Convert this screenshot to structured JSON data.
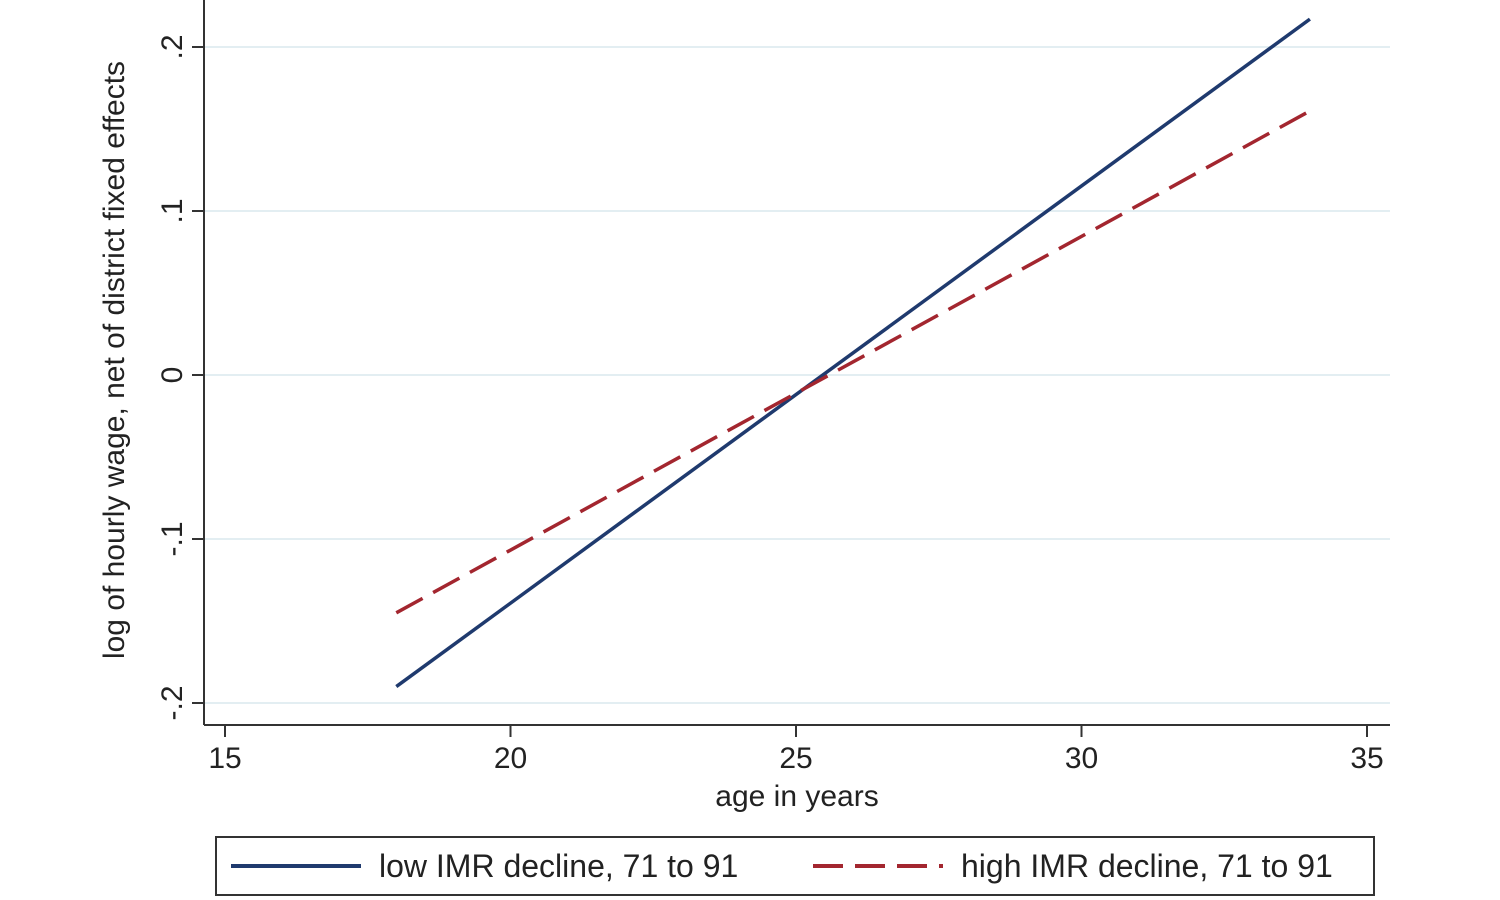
{
  "chart_data": {
    "type": "line",
    "xlabel": "age in years",
    "ylabel": "log of hourly wage, net of district fixed effects",
    "xlim": [
      15,
      35
    ],
    "ylim": [
      -0.2,
      0.2
    ],
    "x_ticks": [
      15,
      20,
      25,
      30,
      35
    ],
    "x_tick_labels": [
      "15",
      "20",
      "25",
      "30",
      "35"
    ],
    "y_ticks": [
      -0.2,
      -0.1,
      0,
      0.1,
      0.2
    ],
    "y_tick_labels": [
      "-.2",
      "-.1",
      "0",
      ".1",
      ".2"
    ],
    "grid": "horizontal",
    "legend_position": "bottom",
    "series": [
      {
        "name": "low IMR decline, 71 to 91",
        "color": "#1f3a6e",
        "style": "solid",
        "x": [
          18,
          34
        ],
        "y": [
          -0.19,
          0.217
        ]
      },
      {
        "name": "high IMR decline, 71 to 91",
        "color": "#a3262f",
        "style": "dashed",
        "x": [
          18,
          34
        ],
        "y": [
          -0.145,
          0.161
        ]
      }
    ]
  }
}
